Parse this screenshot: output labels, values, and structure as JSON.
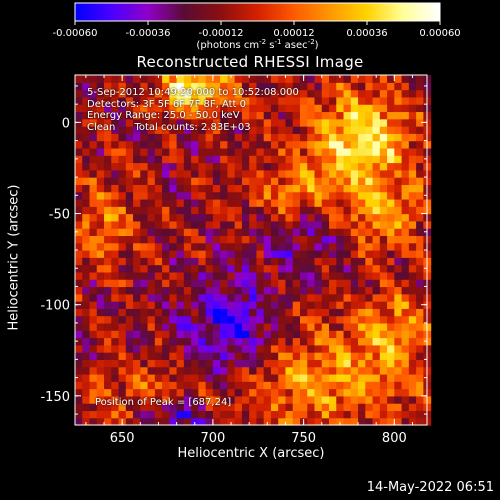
{
  "colors": {
    "background": "#000000",
    "text": "#ffffff",
    "colormap": [
      "#0000ff",
      "#4a00ff",
      "#9000c8",
      "#5a0b34",
      "#8b0f0f",
      "#d42000",
      "#ff5a00",
      "#ff9800",
      "#ffd300",
      "#ffff9a",
      "#ffffff"
    ]
  },
  "chart_data": {
    "type": "heatmap",
    "title": "Reconstructed RHESSI Image",
    "xlabel": "Heliocentric X (arcsec)",
    "ylabel": "Heliocentric Y (arcsec)",
    "xlim": [
      624,
      818
    ],
    "ylim": [
      -166,
      26
    ],
    "x_ticks": [
      650,
      700,
      750,
      800
    ],
    "y_ticks": [
      0,
      -50,
      -100,
      -150
    ],
    "colorbar": {
      "min": -0.0006,
      "max": 0.0006,
      "tick_values": [
        -0.0006,
        -0.00036,
        -0.00012,
        0.00012,
        0.00036,
        0.0006
      ],
      "tick_labels": [
        "-0.00060",
        "-0.00036",
        "-0.00012",
        "0.00012",
        "0.00036",
        "0.00060"
      ],
      "units": [
        "(photons cm",
        "-2",
        " s",
        "-1",
        " asec",
        "-2",
        ")"
      ]
    },
    "grid": false,
    "peak_position": [
      687,
      24
    ],
    "annotations": {
      "time_range": "5-Sep-2012 10:49:20.000 to 10:52:08.000",
      "detectors": "Detectors: 3F 5F 6F 7F 8F, Att 0",
      "energy_range": "Energy Range: 25.0 - 50.0 keV",
      "method_and_counts": "Clean      Total counts: 2.83E+03",
      "peak_text": "Position of Peak = [687,24]"
    },
    "intensity_regions": [
      {
        "center": [
          690,
          18
        ],
        "sigma": [
          14,
          9
        ],
        "value": 0.0006
      },
      {
        "center": [
          782,
          -8
        ],
        "sigma": [
          20,
          18
        ],
        "value": 0.00055
      },
      {
        "center": [
          745,
          -40
        ],
        "sigma": [
          18,
          14
        ],
        "value": 0.00032
      },
      {
        "center": [
          795,
          -50
        ],
        "sigma": [
          14,
          14
        ],
        "value": 0.00036
      },
      {
        "center": [
          640,
          -55
        ],
        "sigma": [
          12,
          16
        ],
        "value": 0.0003
      },
      {
        "center": [
          760,
          -140
        ],
        "sigma": [
          40,
          20
        ],
        "value": 0.00036
      },
      {
        "center": [
          660,
          -150
        ],
        "sigma": [
          22,
          14
        ],
        "value": 0.0002
      },
      {
        "center": [
          800,
          -110
        ],
        "sigma": [
          14,
          14
        ],
        "value": 0.00028
      },
      {
        "center": [
          710,
          -115
        ],
        "sigma": [
          18,
          18
        ],
        "value": -0.00045
      },
      {
        "center": [
          680,
          -160
        ],
        "sigma": [
          12,
          6
        ],
        "value": -0.0004
      },
      {
        "center": [
          745,
          -60
        ],
        "sigma": [
          16,
          12
        ],
        "value": -0.00025
      }
    ],
    "base_level": -0.00013
  },
  "footer": {
    "date": "14-May-2022 06:51"
  }
}
